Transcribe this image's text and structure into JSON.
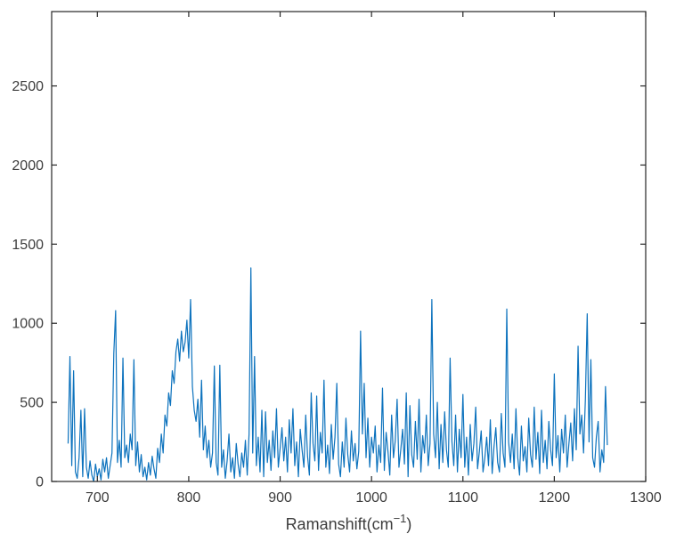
{
  "window": {
    "background": "#ffffff"
  },
  "chart_data": {
    "type": "line",
    "title": "",
    "xlabel": "Ramanshift(cm-1)",
    "xlabel_parts": {
      "pre": "Ramanshift(cm",
      "sup": "−1",
      "post": ")"
    },
    "ylabel": "",
    "xlim": [
      650,
      1300
    ],
    "ylim": [
      0,
      2970
    ],
    "xticks": [
      700,
      800,
      900,
      1000,
      1100,
      1200,
      1300
    ],
    "xtick_labels": [
      "700",
      "800",
      "900",
      "1000",
      "1100",
      "1200",
      "1300"
    ],
    "yticks": [
      0,
      500,
      1000,
      1500,
      2000,
      2500
    ],
    "ytick_labels": [
      "0",
      "500",
      "1000",
      "1500",
      "2000",
      "2500"
    ],
    "grid": false,
    "box": true,
    "tick_direction": "in",
    "legend": null,
    "line_color": "#0c72bd",
    "axis_color": "#262626",
    "tick_label_color": "#3d3d3d",
    "x_start": 668,
    "x_step": 2,
    "values": [
      240,
      790,
      100,
      700,
      60,
      20,
      150,
      450,
      30,
      460,
      90,
      20,
      130,
      40,
      0,
      110,
      30,
      80,
      10,
      140,
      60,
      150,
      20,
      100,
      180,
      810,
      1080,
      120,
      260,
      90,
      780,
      150,
      230,
      120,
      300,
      200,
      770,
      100,
      250,
      60,
      170,
      30,
      90,
      10,
      120,
      40,
      160,
      80,
      20,
      210,
      120,
      300,
      180,
      420,
      350,
      560,
      480,
      700,
      620,
      820,
      900,
      760,
      950,
      820,
      880,
      1020,
      780,
      1150,
      600,
      450,
      380,
      520,
      280,
      640,
      200,
      350,
      150,
      260,
      90,
      180,
      730,
      120,
      40,
      735,
      90,
      200,
      20,
      130,
      300,
      60,
      150,
      20,
      240,
      110,
      30,
      180,
      90,
      260,
      40,
      300,
      1350,
      180,
      790,
      100,
      280,
      60,
      450,
      30,
      440,
      120,
      260,
      70,
      320,
      150,
      460,
      90,
      210,
      340,
      130,
      280,
      60,
      390,
      180,
      460,
      100,
      250,
      30,
      330,
      200,
      90,
      420,
      160,
      40,
      560,
      240,
      130,
      540,
      70,
      310,
      180,
      640,
      90,
      230,
      50,
      360,
      140,
      280,
      620,
      110,
      30,
      250,
      90,
      400,
      170,
      60,
      320,
      130,
      240,
      80,
      190,
      950,
      300,
      620,
      150,
      400,
      90,
      280,
      180,
      350,
      60,
      230,
      120,
      590,
      70,
      310,
      190,
      40,
      420,
      150,
      260,
      520,
      90,
      200,
      330,
      110,
      560,
      30,
      480,
      170,
      90,
      380,
      140,
      520,
      60,
      290,
      180,
      420,
      100,
      240,
      1150,
      300,
      150,
      500,
      80,
      360,
      120,
      440,
      200,
      90,
      780,
      250,
      100,
      420,
      60,
      330,
      150,
      550,
      90,
      280,
      40,
      360,
      130,
      240,
      470,
      80,
      190,
      320,
      60,
      150,
      280,
      100,
      390,
      50,
      220,
      340,
      120,
      60,
      430,
      180,
      90,
      1090,
      250,
      120,
      300,
      80,
      460,
      150,
      40,
      350,
      130,
      220,
      60,
      400,
      170,
      90,
      470,
      140,
      310,
      50,
      450,
      120,
      260,
      80,
      380,
      200,
      100,
      680,
      150,
      290,
      60,
      330,
      180,
      420,
      90,
      240,
      370,
      130,
      460,
      200,
      855,
      300,
      420,
      180,
      520,
      1060,
      250,
      770,
      150,
      90,
      280,
      380,
      60,
      200,
      120,
      600,
      230
    ]
  }
}
